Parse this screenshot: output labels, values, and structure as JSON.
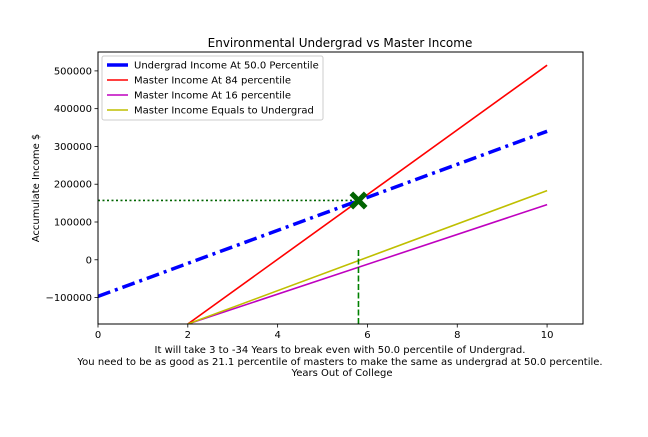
{
  "chart_data": {
    "type": "line",
    "title": "Environmental Undergrad vs Master Income",
    "ylabel": "Accumulate Income $",
    "xlabel_lines": [
      "It will take 3 to -34 Years to break even with 50.0 percentile of Undergrad.",
      "You need to be as good as 21.1 percentile of masters to make the same as undergrad at 50.0 percentile.",
      "Years Out of College"
    ],
    "xlim": [
      0,
      10.8
    ],
    "ylim": [
      -170000,
      550000
    ],
    "x_ticks": [
      0,
      2,
      4,
      6,
      8,
      10
    ],
    "x_tick_labels": [
      "0",
      "2",
      "4",
      "6",
      "8",
      "10"
    ],
    "y_ticks": [
      -100000,
      0,
      100000,
      200000,
      300000,
      400000,
      500000
    ],
    "y_tick_labels": [
      "−100000",
      "0",
      "100000",
      "200000",
      "300000",
      "400000",
      "500000"
    ],
    "legend_position": "upper-left",
    "series": [
      {
        "name": "Undergrad Income At 50.0 Percentile",
        "color": "#0000ff",
        "style": "dashdot-thick",
        "x": [
          0,
          10
        ],
        "y": [
          -97000,
          340000
        ]
      },
      {
        "name": "Master Income At 84 percentile",
        "color": "#ff0000",
        "style": "solid",
        "x": [
          2,
          10
        ],
        "y": [
          -170000,
          515000
        ]
      },
      {
        "name": "Master Income At 16 percentile",
        "color": "#bf00bf",
        "style": "solid",
        "x": [
          2,
          10
        ],
        "y": [
          -170000,
          146000
        ]
      },
      {
        "name": "Master Income Equals to Undergrad",
        "color": "#bfbf00",
        "style": "solid",
        "x": [
          2,
          10
        ],
        "y": [
          -170000,
          183000
        ]
      }
    ],
    "annotations": {
      "breakeven_hline": {
        "y": 157000,
        "x_end": 5.8,
        "color": "#006400",
        "style": "dotted"
      },
      "breakeven_vline": {
        "x": 5.8,
        "y_top": 32000,
        "color": "#008000",
        "style": "dashed"
      },
      "breakeven_marker": {
        "x": 5.8,
        "y": 157000,
        "color": "#006400",
        "symbol": "X"
      }
    }
  }
}
